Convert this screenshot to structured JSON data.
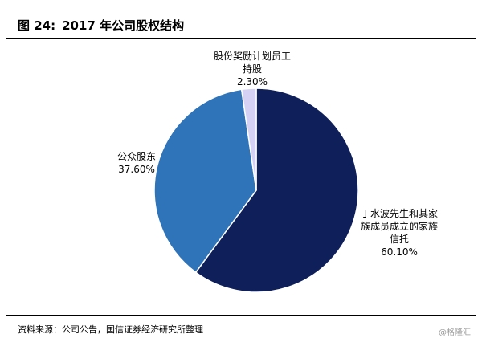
{
  "figure": {
    "number": "图 24:",
    "title": "2017 年公司股权结构"
  },
  "source": "资料来源：公司公告，国信证券经济研究所整理",
  "watermark": "@格隆汇",
  "colors": {
    "slice_founder": "#0f1f5a",
    "slice_public": "#2f73b8",
    "slice_esop": "#d4d1f5",
    "slice_stroke": "#ffffff"
  },
  "chart_data": {
    "type": "pie",
    "title": "",
    "slices": [
      {
        "label": "丁水波先生和其家族成员成立的家族信托",
        "label_lines": [
          "丁水波先生和其家",
          "族成员成立的家族",
          "信托"
        ],
        "value_label": "60.10%",
        "value": 60.1,
        "color": "#0f1f5a"
      },
      {
        "label": "公众股东",
        "label_lines": [
          "公众股东"
        ],
        "value_label": "37.60%",
        "value": 37.6,
        "color": "#2f73b8"
      },
      {
        "label": "股份奖励计划员工持股",
        "label_lines": [
          "股份奖励计划员工",
          "持股"
        ],
        "value_label": "2.30%",
        "value": 2.3,
        "color": "#d4d1f5"
      }
    ]
  }
}
